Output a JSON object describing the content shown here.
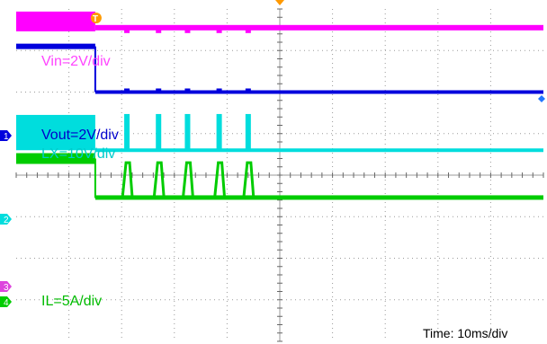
{
  "chart_data": {
    "type": "line",
    "xlabel": "",
    "ylabel": "",
    "grid": true,
    "time_scale_text": "Time: 10ms/div",
    "trigger_marker": "T",
    "channels": [
      {
        "id": "vin",
        "label": "Vin=2V/div",
        "color": "#ff00ff",
        "marker": ""
      },
      {
        "id": "vout",
        "label": "Vout=2V/div",
        "color": "#0000dd",
        "marker": "1"
      },
      {
        "id": "lx",
        "label": "LX=10V/div",
        "color": "#00dddd",
        "marker": "2"
      },
      {
        "id": "il",
        "label": "IL=5A/div",
        "color": "#00cc00",
        "marker": "4"
      }
    ],
    "ref_marker": {
      "label": "3",
      "color": "#dd44dd"
    },
    "events": {
      "transition_time_div": 1.5,
      "pulse_times_div": [
        2.1,
        2.7,
        3.25,
        3.85,
        4.4
      ]
    },
    "levels_div": {
      "vin_before": 0.3,
      "vin_after": 0.45,
      "vout_before": 0.9,
      "vout_after": 2.0,
      "lx_low": 3.4,
      "lx_high": 2.55,
      "il_before": 3.6,
      "il_after": 4.55,
      "il_peak": 3.7
    }
  },
  "icons": {
    "trigger_icon": "trigger-T-marker",
    "trigger_position_icon": "orange-triangle",
    "ch1_marker_icon": "channel-1-arrow",
    "ch2_marker_icon": "channel-2-arrow",
    "ch3_marker_icon": "channel-3-arrow",
    "ch4_marker_icon": "channel-4-arrow",
    "offset_marker_icon": "blue-diamond"
  }
}
